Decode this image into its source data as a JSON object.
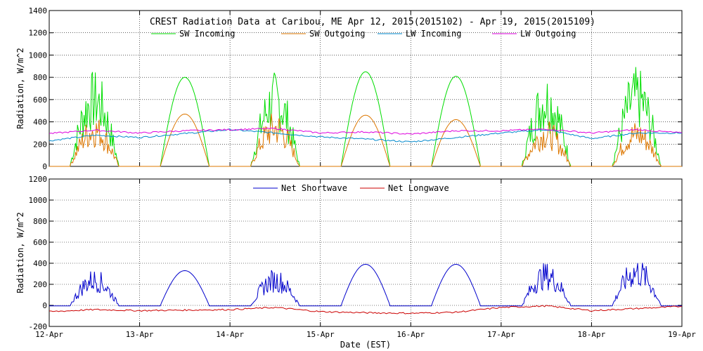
{
  "chart_data": [
    {
      "type": "line",
      "title": "CREST Radiation Data at Caribou, ME   Apr 12, 2015(2015102) - Apr 19, 2015(2015109)",
      "xlabel": "",
      "ylabel": "Radiation, W/m^2",
      "x_unit": "days",
      "xlim": [
        "2015-04-12",
        "2015-04-19"
      ],
      "ylim": [
        0,
        1400
      ],
      "yticks": [
        0,
        200,
        400,
        600,
        800,
        1000,
        1200,
        1400
      ],
      "grid": true,
      "legend": "top",
      "series": [
        {
          "name": "SW Incoming",
          "color": "#00dd00",
          "noisy": true,
          "peaks": [
            870,
            800,
            860,
            850,
            810,
            860,
            900
          ],
          "clear": [
            false,
            true,
            false,
            true,
            true,
            false,
            false
          ]
        },
        {
          "name": "SW Outgoing",
          "color": "#dd7700",
          "noisy": true,
          "peaks": [
            470,
            470,
            500,
            460,
            420,
            420,
            420
          ],
          "clear": [
            false,
            true,
            false,
            true,
            true,
            false,
            false
          ]
        },
        {
          "name": "LW Incoming",
          "color": "#0088cc",
          "noisy": false,
          "points": [
            [
              "2015-04-12",
              230
            ],
            [
              "2015-04-12 12:00",
              280
            ],
            [
              "2015-04-13",
              260
            ],
            [
              "2015-04-13 12:00",
              295
            ],
            [
              "2015-04-14",
              330
            ],
            [
              "2015-04-14 12:00",
              300
            ],
            [
              "2015-04-15",
              265
            ],
            [
              "2015-04-15 12:00",
              245
            ],
            [
              "2015-04-16",
              220
            ],
            [
              "2015-04-16 12:00",
              260
            ],
            [
              "2015-04-17",
              300
            ],
            [
              "2015-04-17 12:00",
              330
            ],
            [
              "2015-04-18",
              250
            ],
            [
              "2015-04-18 12:00",
              300
            ],
            [
              "2015-04-19",
              300
            ]
          ]
        },
        {
          "name": "LW Outgoing",
          "color": "#dd00dd",
          "noisy": false,
          "points": [
            [
              "2015-04-12",
              295
            ],
            [
              "2015-04-12 12:00",
              325
            ],
            [
              "2015-04-13",
              300
            ],
            [
              "2015-04-13 12:00",
              320
            ],
            [
              "2015-04-14",
              330
            ],
            [
              "2015-04-14 12:00",
              340
            ],
            [
              "2015-04-15",
              300
            ],
            [
              "2015-04-15 12:00",
              310
            ],
            [
              "2015-04-16",
              290
            ],
            [
              "2015-04-16 12:00",
              320
            ],
            [
              "2015-04-17",
              320
            ],
            [
              "2015-04-17 12:00",
              335
            ],
            [
              "2015-04-18",
              300
            ],
            [
              "2015-04-18 12:00",
              330
            ],
            [
              "2015-04-19",
              300
            ]
          ]
        }
      ]
    },
    {
      "type": "line",
      "title": "",
      "xlabel": "Date (EST)",
      "ylabel": "Radiation, W/m^2",
      "x_unit": "days",
      "xlim": [
        "2015-04-12",
        "2015-04-19"
      ],
      "ylim": [
        -200,
        1200
      ],
      "yticks": [
        -200,
        0,
        200,
        400,
        600,
        800,
        1000,
        1200
      ],
      "xticks": [
        "12-Apr",
        "13-Apr",
        "14-Apr",
        "15-Apr",
        "16-Apr",
        "17-Apr",
        "18-Apr",
        "19-Apr"
      ],
      "grid": true,
      "legend": "top",
      "series": [
        {
          "name": "Net Shortwave",
          "color": "#0000cc",
          "noisy": true,
          "peaks": [
            350,
            330,
            350,
            390,
            390,
            410,
            460
          ],
          "clear": [
            false,
            true,
            false,
            true,
            true,
            false,
            false
          ],
          "night": -5
        },
        {
          "name": "Net Longwave",
          "color": "#cc0000",
          "noisy": false,
          "points": [
            [
              "2015-04-12",
              -60
            ],
            [
              "2015-04-12 12:00",
              -40
            ],
            [
              "2015-04-13",
              -50
            ],
            [
              "2015-04-13 12:00",
              -45
            ],
            [
              "2015-04-14",
              -40
            ],
            [
              "2015-04-14 12:00",
              -20
            ],
            [
              "2015-04-15",
              -60
            ],
            [
              "2015-04-15 12:00",
              -70
            ],
            [
              "2015-04-16",
              -75
            ],
            [
              "2015-04-16 12:00",
              -65
            ],
            [
              "2015-04-17",
              -20
            ],
            [
              "2015-04-17 12:00",
              -5
            ],
            [
              "2015-04-18",
              -50
            ],
            [
              "2015-04-18 12:00",
              -30
            ],
            [
              "2015-04-19",
              -10
            ]
          ]
        }
      ]
    }
  ]
}
